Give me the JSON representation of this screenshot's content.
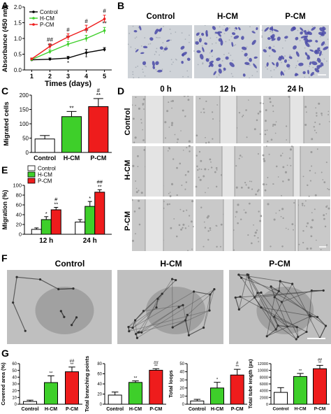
{
  "panels": {
    "A": "A",
    "B": "B",
    "C": "C",
    "D": "D",
    "E": "E",
    "F": "F",
    "G": "G"
  },
  "colors": {
    "control": "#000000",
    "hcm": "#3ecf2a",
    "pcm": "#ee1c1c",
    "stain": "#4a4aa8"
  },
  "panel_B": {
    "headers": [
      "Control",
      "H-CM",
      "P-CM"
    ]
  },
  "panel_D": {
    "time_headers": [
      "0 h",
      "12 h",
      "24 h"
    ],
    "row_labels": [
      "Control",
      "H-CM",
      "P-CM"
    ]
  },
  "panel_F": {
    "headers": [
      "Control",
      "H-CM",
      "P-CM"
    ]
  },
  "chart_data": [
    {
      "id": "A",
      "type": "line",
      "xlabel": "Times (days)",
      "ylabel": "Absorbance (450 nm)",
      "x": [
        1,
        2,
        3,
        4,
        5
      ],
      "xlim": [
        0.6,
        5.4
      ],
      "ylim": [
        0.0,
        2.0
      ],
      "yticks": [
        "0.0",
        "0.5",
        "1.0",
        "1.5",
        "2.0"
      ],
      "series": [
        {
          "name": "Control",
          "values": [
            0.32,
            0.34,
            0.38,
            0.55,
            0.65
          ],
          "err": [
            0.03,
            0.04,
            0.05,
            0.1,
            0.06
          ],
          "sig": [
            "",
            "",
            "*",
            "*",
            ""
          ]
        },
        {
          "name": "H-CM",
          "values": [
            0.33,
            0.58,
            0.82,
            1.0,
            1.25
          ],
          "err": [
            0.03,
            0.06,
            0.08,
            0.1,
            0.1
          ],
          "sig": [
            "",
            "**",
            "**",
            "**",
            "**"
          ]
        },
        {
          "name": "P-CM",
          "values": [
            0.35,
            0.75,
            1.05,
            1.3,
            1.62
          ],
          "err": [
            0.03,
            0.08,
            0.1,
            0.12,
            0.12
          ],
          "sig": [
            "",
            "##",
            "#",
            "#",
            "#"
          ]
        }
      ]
    },
    {
      "id": "C",
      "type": "bar",
      "ylabel": "Migrated cells",
      "ylim": [
        0,
        200
      ],
      "yticks": [
        "0",
        "50",
        "100",
        "150",
        "200"
      ],
      "categories": [
        "Control",
        "H-CM",
        "P-CM"
      ],
      "values": [
        47,
        125,
        160
      ],
      "err": [
        12,
        18,
        28
      ],
      "sig": [
        "",
        "**",
        "**"
      ],
      "sig2": [
        "",
        "",
        "#"
      ]
    },
    {
      "id": "E",
      "type": "bar",
      "ylabel": "Migration (%)",
      "ylim": [
        0,
        100
      ],
      "yticks": [
        "0",
        "20",
        "40",
        "60",
        "80",
        "100"
      ],
      "categories": [
        "12 h",
        "24 h"
      ],
      "series": [
        {
          "name": "Control",
          "values": [
            10,
            25
          ],
          "err": [
            3,
            5
          ]
        },
        {
          "name": "H-CM",
          "values": [
            30,
            57
          ],
          "err": [
            6,
            10
          ]
        },
        {
          "name": "P-CM",
          "values": [
            50,
            86
          ],
          "err": [
            5,
            5
          ]
        }
      ],
      "sig": [
        [
          "",
          "*",
          "**"
        ],
        [
          "",
          "*",
          "**"
        ]
      ],
      "sig2": [
        [
          "",
          "",
          "#"
        ],
        [
          "",
          "",
          "##"
        ]
      ]
    },
    {
      "id": "G1",
      "type": "bar",
      "ylabel": "Covered area (%)",
      "ylim": [
        0,
        60
      ],
      "yticks": [
        "0",
        "10",
        "20",
        "30",
        "40",
        "50",
        "60"
      ],
      "categories": [
        "Control",
        "H-CM",
        "P-CM"
      ],
      "values": [
        4,
        32,
        48
      ],
      "err": [
        2,
        10,
        7
      ],
      "sig": [
        "",
        "**",
        "**"
      ],
      "sig2": [
        "",
        "",
        "##"
      ]
    },
    {
      "id": "G2",
      "type": "bar",
      "ylabel": "Total branching points",
      "ylim": [
        0,
        80
      ],
      "yticks": [
        "0",
        "20",
        "40",
        "60",
        "80"
      ],
      "categories": [
        "Control",
        "H-CM",
        "P-CM"
      ],
      "values": [
        18,
        43,
        67
      ],
      "err": [
        6,
        3,
        3
      ],
      "sig": [
        "",
        "**",
        "**"
      ],
      "sig2": [
        "",
        "",
        "##"
      ]
    },
    {
      "id": "G3",
      "type": "bar",
      "ylabel": "Total loops",
      "ylim": [
        0,
        50
      ],
      "yticks": [
        "0",
        "10",
        "20",
        "30",
        "40",
        "50"
      ],
      "categories": [
        "Control",
        "H-CM",
        "P-CM"
      ],
      "values": [
        4,
        20,
        36
      ],
      "err": [
        2,
        7,
        7
      ],
      "sig": [
        "",
        "*",
        "**"
      ],
      "sig2": [
        "",
        "",
        "#"
      ]
    },
    {
      "id": "G4",
      "type": "bar",
      "ylabel": "Total tube length (px)",
      "ylim": [
        0,
        12000
      ],
      "yticks": [
        "0",
        "2000",
        "4000",
        "6000",
        "8000",
        "10000",
        "12000"
      ],
      "categories": [
        "Control",
        "H-CM",
        "P-CM"
      ],
      "values": [
        3500,
        8200,
        10500
      ],
      "err": [
        1400,
        900,
        1000
      ],
      "sig": [
        "",
        "**",
        "**"
      ],
      "sig2": [
        "",
        "",
        "##"
      ]
    }
  ]
}
